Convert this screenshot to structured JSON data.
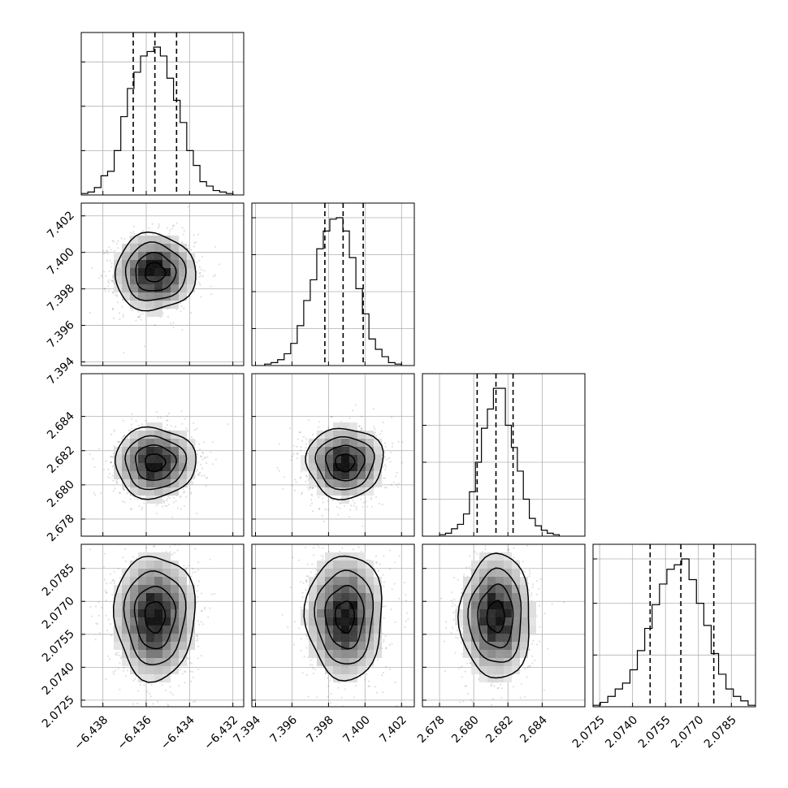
{
  "chart_data": {
    "type": "corner",
    "grid": true,
    "params": [
      {
        "range": [
          -6.439,
          -6.4315
        ],
        "ticks": [
          -6.438,
          -6.436,
          -6.434,
          -6.432
        ],
        "tick_labels": [
          "−6.438",
          "−6.436",
          "−6.434",
          "−6.432"
        ],
        "mean": -6.4356,
        "sigma": 0.00093,
        "quantiles": [
          -6.4366,
          -6.4356,
          -6.4346
        ],
        "hist_range": [
          -6.439,
          -6.432
        ],
        "hist": [
          0.01,
          0.02,
          0.05,
          0.13,
          0.16,
          0.3,
          0.53,
          0.72,
          0.83,
          0.94,
          0.97,
          1.0,
          0.94,
          0.79,
          0.64,
          0.49,
          0.3,
          0.2,
          0.09,
          0.06,
          0.03,
          0.02,
          0.01
        ],
        "hist_yticks": [
          0.3,
          0.6,
          0.9
        ]
      },
      {
        "range": [
          7.3938,
          7.4027
        ],
        "ticks": [
          7.394,
          7.396,
          7.398,
          7.4,
          7.402
        ],
        "tick_labels": [
          "7.394",
          "7.396",
          "7.398",
          "7.400",
          "7.402"
        ],
        "mean": 7.3989,
        "sigma": 0.00105,
        "quantiles": [
          7.3978,
          7.3988,
          7.3999
        ],
        "hist_range": [
          7.3945,
          7.402
        ],
        "hist": [
          0.01,
          0.02,
          0.04,
          0.08,
          0.15,
          0.27,
          0.44,
          0.58,
          0.79,
          0.91,
          0.99,
          1.0,
          0.91,
          0.73,
          0.52,
          0.35,
          0.18,
          0.11,
          0.06,
          0.02,
          0.01
        ],
        "hist_yticks": [
          0.25,
          0.5,
          0.75,
          1.0
        ]
      },
      {
        "range": [
          2.677,
          2.6865
        ],
        "ticks": [
          2.678,
          2.68,
          2.682,
          2.684
        ],
        "tick_labels": [
          "2.678",
          "2.680",
          "2.682",
          "2.684"
        ],
        "mean": 2.6813,
        "sigma": 0.00103,
        "quantiles": [
          2.6802,
          2.6813,
          2.6823
        ],
        "hist_range": [
          2.678,
          2.685
        ],
        "hist": [
          0.01,
          0.02,
          0.05,
          0.08,
          0.15,
          0.3,
          0.5,
          0.73,
          0.86,
          1.0,
          1.0,
          0.75,
          0.6,
          0.44,
          0.25,
          0.12,
          0.07,
          0.04,
          0.02,
          0.01
        ],
        "hist_yticks": [
          0.25,
          0.5,
          0.75
        ]
      },
      {
        "range": [
          2.0722,
          2.0796
        ],
        "ticks": [
          2.0725,
          2.074,
          2.0755,
          2.077,
          2.0785
        ],
        "tick_labels": [
          "2.0725",
          "2.0740",
          "2.0755",
          "2.0770",
          "2.0785"
        ],
        "mean": 2.0763,
        "sigma": 0.00142,
        "quantiles": [
          2.0748,
          2.0762,
          2.0777
        ],
        "hist_range": [
          2.0722,
          2.0796
        ],
        "hist": [
          0.01,
          0.03,
          0.07,
          0.12,
          0.16,
          0.25,
          0.38,
          0.53,
          0.69,
          0.83,
          0.93,
          0.96,
          1.0,
          0.86,
          0.7,
          0.55,
          0.36,
          0.22,
          0.12,
          0.07,
          0.04,
          0.01
        ],
        "hist_yticks": [
          0.35,
          0.7,
          1.0
        ]
      }
    ],
    "contour_levels_sigma": [
      0.5,
      1.0,
      1.5,
      2.0
    ],
    "scatter_points_per_panel": 1400
  }
}
